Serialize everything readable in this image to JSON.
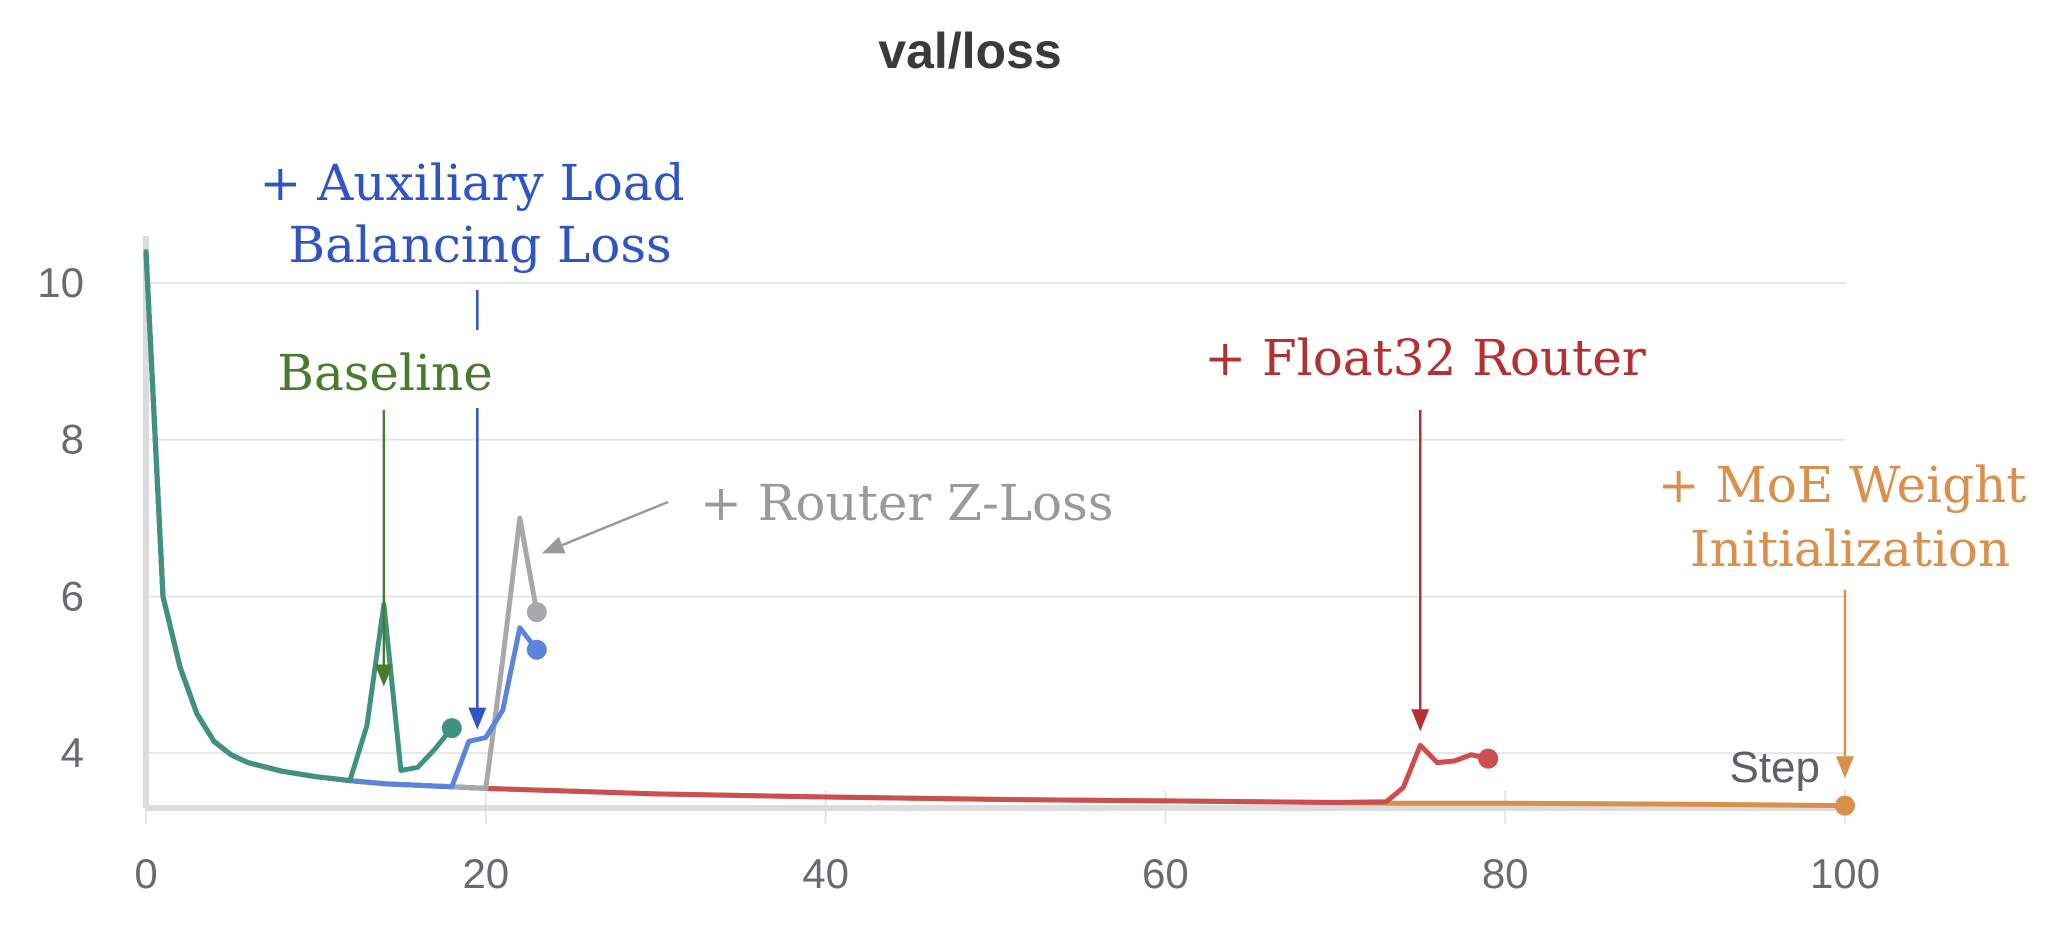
{
  "chart_data": {
    "type": "line",
    "title": "val/loss",
    "xlabel": "Step",
    "ylabel": "",
    "xlim": [
      0,
      100
    ],
    "ylim": [
      3.3,
      10.6
    ],
    "xticks": [
      0,
      20,
      40,
      60,
      80,
      100
    ],
    "yticks": [
      4,
      6,
      8,
      10
    ],
    "grid": true,
    "legend": "none",
    "series": [
      {
        "color": "#d9904a",
        "x": [
          0,
          1,
          2,
          3,
          4,
          5,
          6,
          8,
          10,
          12,
          14,
          16,
          18,
          20,
          30,
          40,
          50,
          60,
          70,
          74,
          80,
          90,
          100
        ],
        "y": [
          10.4,
          6.0,
          5.1,
          4.5,
          4.15,
          3.98,
          3.88,
          3.77,
          3.7,
          3.65,
          3.61,
          3.59,
          3.57,
          3.55,
          3.48,
          3.44,
          3.41,
          3.39,
          3.37,
          3.36,
          3.36,
          3.35,
          3.33
        ]
      },
      {
        "color": "#cc4e4e",
        "x": [
          0,
          1,
          2,
          3,
          4,
          5,
          6,
          8,
          10,
          12,
          14,
          16,
          18,
          20,
          30,
          40,
          50,
          60,
          70,
          73,
          74,
          75,
          76,
          77,
          78,
          79
        ],
        "y": [
          10.4,
          6.0,
          5.1,
          4.5,
          4.15,
          3.98,
          3.88,
          3.77,
          3.7,
          3.65,
          3.61,
          3.59,
          3.57,
          3.55,
          3.48,
          3.44,
          3.41,
          3.39,
          3.37,
          3.38,
          3.56,
          4.1,
          3.88,
          3.9,
          3.98,
          3.93
        ]
      },
      {
        "color": "#a8a8ab",
        "x": [
          0,
          1,
          2,
          3,
          4,
          5,
          6,
          8,
          10,
          12,
          14,
          16,
          18,
          19,
          20,
          21,
          22,
          23
        ],
        "y": [
          10.4,
          6.0,
          5.1,
          4.5,
          4.15,
          3.98,
          3.88,
          3.77,
          3.7,
          3.65,
          3.61,
          3.59,
          3.57,
          3.56,
          3.55,
          5.2,
          7.0,
          5.8
        ]
      },
      {
        "color": "#5b84dc",
        "x": [
          0,
          1,
          2,
          3,
          4,
          5,
          6,
          8,
          10,
          12,
          14,
          16,
          17,
          18,
          19,
          20,
          21,
          22,
          23
        ],
        "y": [
          10.4,
          6.0,
          5.1,
          4.5,
          4.15,
          3.98,
          3.88,
          3.77,
          3.7,
          3.65,
          3.61,
          3.59,
          3.58,
          3.57,
          4.15,
          4.2,
          4.55,
          5.6,
          5.32
        ]
      },
      {
        "color": "#3f9180",
        "x": [
          0,
          1,
          2,
          3,
          4,
          5,
          6,
          8,
          10,
          12,
          13,
          14,
          15,
          16,
          17,
          18
        ],
        "y": [
          10.4,
          6.0,
          5.1,
          4.5,
          4.15,
          3.98,
          3.88,
          3.77,
          3.7,
          3.65,
          4.35,
          5.9,
          3.78,
          3.82,
          4.05,
          4.32
        ]
      }
    ],
    "annotations": [
      {
        "text": "Baseline",
        "color": "#4a7a2c"
      },
      {
        "text": "+ Auxiliary Load Balancing Loss",
        "lines": [
          "+ Auxiliary Load",
          "Balancing Loss"
        ],
        "color": "#2f55c4"
      },
      {
        "text": "+ Router Z-Loss",
        "color": "#9a9a9a"
      },
      {
        "text": "+ Float32 Router",
        "color": "#b53030"
      },
      {
        "text": "+ MoE Weight Initialization",
        "lines": [
          "+ MoE Weight",
          "Initialization"
        ],
        "color": "#d9904a"
      }
    ]
  }
}
